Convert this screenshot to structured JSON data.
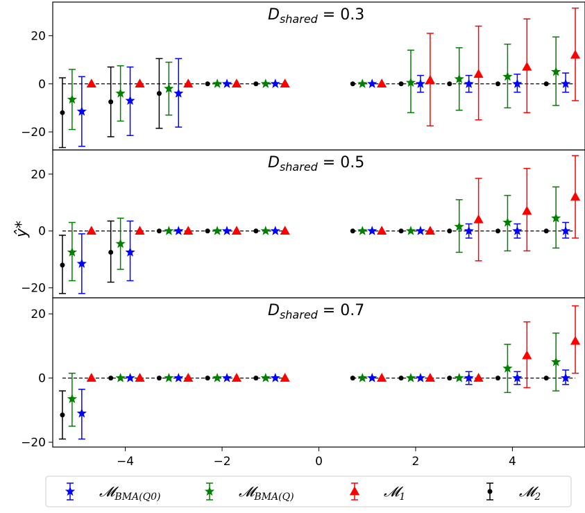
{
  "chart_data": {
    "type": "scatter",
    "subtype": "errorbar",
    "ylabel": "ŷ*",
    "xlim": [
      -5.5,
      5.5
    ],
    "xticks": [
      -4,
      -2,
      0,
      2,
      4
    ],
    "xtick_labels": [
      "−4",
      "−2",
      "0",
      "2",
      "4"
    ],
    "reference_line": {
      "y": 0,
      "style": "dashed",
      "color": "#000000",
      "segments": [
        [
          -5.3,
          -0.7
        ],
        [
          0.7,
          5.3
        ]
      ]
    },
    "legend_position": "bottom",
    "series": [
      {
        "name": "𝓜BMA(Q0)",
        "label_main": "𝓜",
        "label_sub": "BMA(Q0)",
        "color": "#0000ff",
        "marker": "star"
      },
      {
        "name": "𝓜BMA(Q)",
        "label_main": "𝓜",
        "label_sub": "BMA(Q)",
        "color": "#008000",
        "marker": "star"
      },
      {
        "name": "𝓜1",
        "label_main": "𝓜",
        "label_sub": "1",
        "color": "#ff0000",
        "marker": "triangle"
      },
      {
        "name": "𝓜2",
        "label_main": "𝓜",
        "label_sub": "2",
        "color": "#000000",
        "marker": "dot"
      }
    ],
    "panels": [
      {
        "title_main": "D",
        "title_sub": "shared",
        "title_value": " = 0.3",
        "ylim": [
          -27.5,
          34
        ],
        "yticks": [
          -20,
          0,
          20
        ],
        "ytick_labels": [
          "−20",
          "0",
          "20"
        ],
        "points": {
          "M2": [
            {
              "x": -5.3,
              "y": -12,
              "lo": -26.5,
              "hi": 2.5
            },
            {
              "x": -4.3,
              "y": -7.5,
              "lo": -22,
              "hi": 7
            },
            {
              "x": -3.3,
              "y": -4,
              "lo": -18.5,
              "hi": 10.5
            },
            {
              "x": -2.3,
              "y": 0,
              "lo": 0,
              "hi": 0
            },
            {
              "x": -1.3,
              "y": 0,
              "lo": 0,
              "hi": 0
            },
            {
              "x": 0.7,
              "y": 0,
              "lo": 0,
              "hi": 0
            },
            {
              "x": 1.7,
              "y": 0,
              "lo": 0,
              "hi": 0
            },
            {
              "x": 2.7,
              "y": 0,
              "lo": 0,
              "hi": 0
            },
            {
              "x": 3.7,
              "y": 0,
              "lo": 0,
              "hi": 0
            },
            {
              "x": 4.7,
              "y": 0,
              "lo": 0,
              "hi": 0
            }
          ],
          "BMA_Q": [
            {
              "x": -5.1,
              "y": -6.5,
              "lo": -19,
              "hi": 6
            },
            {
              "x": -4.1,
              "y": -4,
              "lo": -15.5,
              "hi": 7.5
            },
            {
              "x": -3.1,
              "y": -2,
              "lo": -13,
              "hi": 9
            },
            {
              "x": -2.1,
              "y": 0,
              "lo": 0,
              "hi": 0
            },
            {
              "x": -1.1,
              "y": 0,
              "lo": 0,
              "hi": 0
            },
            {
              "x": 0.9,
              "y": 0,
              "lo": 0,
              "hi": 0
            },
            {
              "x": 1.9,
              "y": 0.5,
              "lo": -12,
              "hi": 14
            },
            {
              "x": 2.9,
              "y": 2,
              "lo": -11,
              "hi": 15
            },
            {
              "x": 3.9,
              "y": 3,
              "lo": -10,
              "hi": 16.5
            },
            {
              "x": 4.9,
              "y": 5,
              "lo": -9,
              "hi": 19.5
            }
          ],
          "BMA_Q0": [
            {
              "x": -4.9,
              "y": -11.5,
              "lo": -26,
              "hi": 3
            },
            {
              "x": -3.9,
              "y": -7,
              "lo": -21.5,
              "hi": 7
            },
            {
              "x": -2.9,
              "y": -4,
              "lo": -18,
              "hi": 10.5
            },
            {
              "x": -1.9,
              "y": 0,
              "lo": 0,
              "hi": 0
            },
            {
              "x": -0.9,
              "y": 0,
              "lo": 0,
              "hi": 0
            },
            {
              "x": 1.1,
              "y": 0,
              "lo": 0,
              "hi": 0
            },
            {
              "x": 2.1,
              "y": 0,
              "lo": -3.5,
              "hi": 3.5
            },
            {
              "x": 3.1,
              "y": 0,
              "lo": -3.5,
              "hi": 3.5
            },
            {
              "x": 4.1,
              "y": 0,
              "lo": -3.5,
              "hi": 4
            },
            {
              "x": 5.1,
              "y": 0,
              "lo": -3.5,
              "hi": 4.5
            }
          ],
          "M1": [
            {
              "x": -4.7,
              "y": 0,
              "lo": 0,
              "hi": 0
            },
            {
              "x": -3.7,
              "y": 0,
              "lo": 0,
              "hi": 0
            },
            {
              "x": -2.7,
              "y": 0,
              "lo": 0,
              "hi": 0
            },
            {
              "x": -1.7,
              "y": 0,
              "lo": 0,
              "hi": 0
            },
            {
              "x": -0.7,
              "y": 0,
              "lo": 0,
              "hi": 0
            },
            {
              "x": 1.3,
              "y": 0,
              "lo": 0,
              "hi": 0
            },
            {
              "x": 2.3,
              "y": 1.5,
              "lo": -17.5,
              "hi": 21
            },
            {
              "x": 3.3,
              "y": 4,
              "lo": -15,
              "hi": 24
            },
            {
              "x": 4.3,
              "y": 7,
              "lo": -12,
              "hi": 27
            },
            {
              "x": 5.3,
              "y": 12,
              "lo": -7,
              "hi": 31.5
            }
          ]
        }
      },
      {
        "title_main": "D",
        "title_sub": "shared",
        "title_value": " = 0.5",
        "ylim": [
          -23.5,
          28.5
        ],
        "yticks": [
          -20,
          0,
          20
        ],
        "ytick_labels": [
          "−20",
          "0",
          "20"
        ],
        "points": {
          "M2": [
            {
              "x": -5.3,
              "y": -12,
              "lo": -22,
              "hi": -1.5
            },
            {
              "x": -4.3,
              "y": -7.5,
              "lo": -18,
              "hi": 3.5
            },
            {
              "x": -3.3,
              "y": 0,
              "lo": 0,
              "hi": 0
            },
            {
              "x": -2.3,
              "y": 0,
              "lo": 0,
              "hi": 0
            },
            {
              "x": -1.3,
              "y": 0,
              "lo": 0,
              "hi": 0
            },
            {
              "x": 0.7,
              "y": 0,
              "lo": 0,
              "hi": 0
            },
            {
              "x": 1.7,
              "y": 0,
              "lo": 0,
              "hi": 0
            },
            {
              "x": 2.7,
              "y": 0,
              "lo": 0,
              "hi": 0
            },
            {
              "x": 3.7,
              "y": 0,
              "lo": 0,
              "hi": 0
            },
            {
              "x": 4.7,
              "y": 0,
              "lo": 0,
              "hi": 0
            }
          ],
          "BMA_Q": [
            {
              "x": -5.1,
              "y": -7.5,
              "lo": -17.5,
              "hi": 3
            },
            {
              "x": -4.1,
              "y": -4.5,
              "lo": -13.5,
              "hi": 4.5
            },
            {
              "x": -3.1,
              "y": 0,
              "lo": 0,
              "hi": 0
            },
            {
              "x": -2.1,
              "y": 0,
              "lo": 0,
              "hi": 0
            },
            {
              "x": -1.1,
              "y": 0,
              "lo": 0,
              "hi": 0
            },
            {
              "x": 0.9,
              "y": 0,
              "lo": 0,
              "hi": 0
            },
            {
              "x": 1.9,
              "y": 0,
              "lo": 0,
              "hi": 0
            },
            {
              "x": 2.9,
              "y": 1.5,
              "lo": -7.5,
              "hi": 11
            },
            {
              "x": 3.9,
              "y": 3,
              "lo": -7,
              "hi": 12.5
            },
            {
              "x": 4.9,
              "y": 4.5,
              "lo": -6,
              "hi": 15.5
            }
          ],
          "BMA_Q0": [
            {
              "x": -4.9,
              "y": -11.5,
              "lo": -22,
              "hi": -1
            },
            {
              "x": -3.9,
              "y": -7.5,
              "lo": -17.5,
              "hi": 3.5
            },
            {
              "x": -2.9,
              "y": 0,
              "lo": 0,
              "hi": 0
            },
            {
              "x": -1.9,
              "y": 0,
              "lo": 0,
              "hi": 0
            },
            {
              "x": -0.9,
              "y": 0,
              "lo": 0,
              "hi": 0
            },
            {
              "x": 1.1,
              "y": 0,
              "lo": 0,
              "hi": 0
            },
            {
              "x": 2.1,
              "y": 0,
              "lo": 0,
              "hi": 0
            },
            {
              "x": 3.1,
              "y": 0,
              "lo": -2.5,
              "hi": 2.5
            },
            {
              "x": 4.1,
              "y": 0,
              "lo": -2.5,
              "hi": 2.5
            },
            {
              "x": 5.1,
              "y": 0,
              "lo": -2.5,
              "hi": 3
            }
          ],
          "M1": [
            {
              "x": -4.7,
              "y": 0,
              "lo": 0,
              "hi": 0
            },
            {
              "x": -3.7,
              "y": 0,
              "lo": 0,
              "hi": 0
            },
            {
              "x": -2.7,
              "y": 0,
              "lo": 0,
              "hi": 0
            },
            {
              "x": -1.7,
              "y": 0,
              "lo": 0,
              "hi": 0
            },
            {
              "x": -0.7,
              "y": 0,
              "lo": 0,
              "hi": 0
            },
            {
              "x": 1.3,
              "y": 0,
              "lo": 0,
              "hi": 0
            },
            {
              "x": 2.3,
              "y": 0,
              "lo": 0,
              "hi": 0
            },
            {
              "x": 3.3,
              "y": 4,
              "lo": -10.5,
              "hi": 18.5
            },
            {
              "x": 4.3,
              "y": 7,
              "lo": -7,
              "hi": 22
            },
            {
              "x": 5.3,
              "y": 12,
              "lo": -2.5,
              "hi": 26.5
            }
          ]
        }
      },
      {
        "title_main": "D",
        "title_sub": "shared",
        "title_value": " = 0.7",
        "ylim": [
          -21.5,
          25
        ],
        "yticks": [
          -20,
          0,
          20
        ],
        "ytick_labels": [
          "−20",
          "0",
          "20"
        ],
        "points": {
          "M2": [
            {
              "x": -5.3,
              "y": -11.5,
              "lo": -19,
              "hi": -4
            },
            {
              "x": -4.3,
              "y": 0,
              "lo": 0,
              "hi": 0
            },
            {
              "x": -3.3,
              "y": 0,
              "lo": 0,
              "hi": 0
            },
            {
              "x": -2.3,
              "y": 0,
              "lo": 0,
              "hi": 0
            },
            {
              "x": -1.3,
              "y": 0,
              "lo": 0,
              "hi": 0
            },
            {
              "x": 0.7,
              "y": 0,
              "lo": 0,
              "hi": 0
            },
            {
              "x": 1.7,
              "y": 0,
              "lo": 0,
              "hi": 0
            },
            {
              "x": 2.7,
              "y": 0,
              "lo": 0,
              "hi": 0
            },
            {
              "x": 3.7,
              "y": 0,
              "lo": 0,
              "hi": 0
            },
            {
              "x": 4.7,
              "y": 0,
              "lo": 0,
              "hi": 0
            }
          ],
          "BMA_Q": [
            {
              "x": -5.1,
              "y": -6.5,
              "lo": -15,
              "hi": 1.5
            },
            {
              "x": -4.1,
              "y": 0,
              "lo": 0,
              "hi": 0
            },
            {
              "x": -3.1,
              "y": 0,
              "lo": 0,
              "hi": 0
            },
            {
              "x": -2.1,
              "y": 0,
              "lo": 0,
              "hi": 0
            },
            {
              "x": -1.1,
              "y": 0,
              "lo": 0,
              "hi": 0
            },
            {
              "x": 0.9,
              "y": 0,
              "lo": 0,
              "hi": 0
            },
            {
              "x": 1.9,
              "y": 0,
              "lo": 0,
              "hi": 0
            },
            {
              "x": 2.9,
              "y": 0,
              "lo": 0,
              "hi": 0
            },
            {
              "x": 3.9,
              "y": 3,
              "lo": -4.5,
              "hi": 10.5
            },
            {
              "x": 4.9,
              "y": 5,
              "lo": -4,
              "hi": 14
            }
          ],
          "BMA_Q0": [
            {
              "x": -4.9,
              "y": -11,
              "lo": -19,
              "hi": -3.5
            },
            {
              "x": -3.9,
              "y": 0,
              "lo": 0,
              "hi": 0
            },
            {
              "x": -2.9,
              "y": 0,
              "lo": 0,
              "hi": 0
            },
            {
              "x": -1.9,
              "y": 0,
              "lo": 0,
              "hi": 0
            },
            {
              "x": -0.9,
              "y": 0,
              "lo": 0,
              "hi": 0
            },
            {
              "x": 1.1,
              "y": 0,
              "lo": 0,
              "hi": 0
            },
            {
              "x": 2.1,
              "y": 0,
              "lo": 0,
              "hi": 0
            },
            {
              "x": 3.1,
              "y": 0,
              "lo": -2,
              "hi": 2
            },
            {
              "x": 4.1,
              "y": 0,
              "lo": -2,
              "hi": 2
            },
            {
              "x": 5.1,
              "y": 0,
              "lo": -2,
              "hi": 2.5
            }
          ],
          "M1": [
            {
              "x": -4.7,
              "y": 0,
              "lo": 0,
              "hi": 0
            },
            {
              "x": -3.7,
              "y": 0,
              "lo": 0,
              "hi": 0
            },
            {
              "x": -2.7,
              "y": 0,
              "lo": 0,
              "hi": 0
            },
            {
              "x": -1.7,
              "y": 0,
              "lo": 0,
              "hi": 0
            },
            {
              "x": -0.7,
              "y": 0,
              "lo": 0,
              "hi": 0
            },
            {
              "x": 1.3,
              "y": 0,
              "lo": 0,
              "hi": 0
            },
            {
              "x": 2.3,
              "y": 0,
              "lo": 0,
              "hi": 0
            },
            {
              "x": 3.3,
              "y": 0,
              "lo": 0,
              "hi": 0
            },
            {
              "x": 4.3,
              "y": 7,
              "lo": -3,
              "hi": 17.5
            },
            {
              "x": 5.3,
              "y": 11.5,
              "lo": 1.5,
              "hi": 22.5
            }
          ]
        }
      }
    ]
  }
}
